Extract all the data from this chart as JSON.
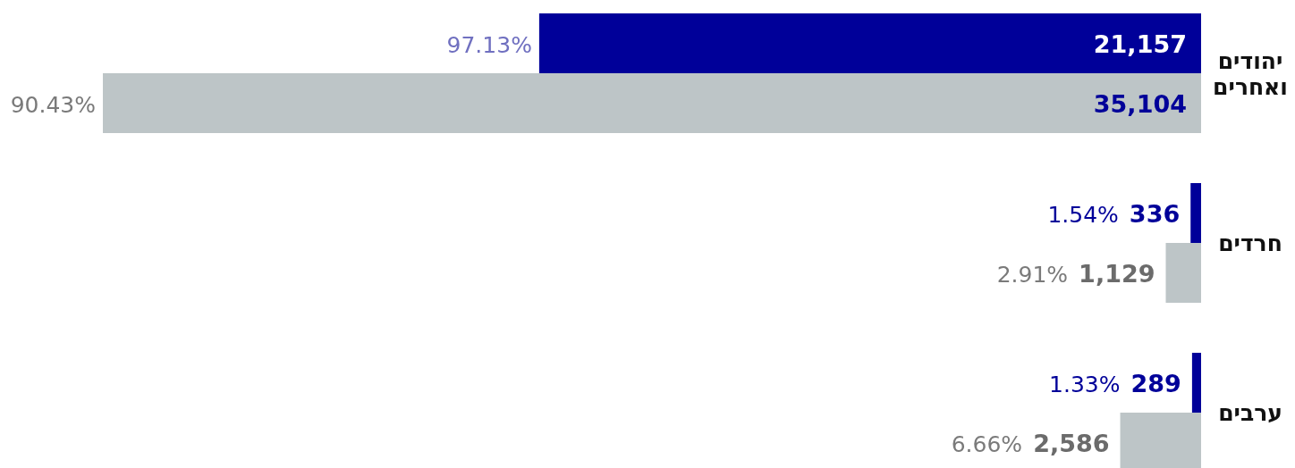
{
  "chart_data": {
    "type": "bar",
    "orientation": "horizontal",
    "categories": [
      "יהודים ואחרים",
      "חרדים",
      "ערבים"
    ],
    "series": [
      {
        "color": "#000099",
        "values": [
          21157,
          336,
          289
        ],
        "value_labels": [
          "21,157",
          "336",
          "289"
        ]
      },
      {
        "color": "#bdc5c7",
        "values": [
          35104,
          1129,
          2586
        ],
        "value_labels": [
          "35,104",
          "1,129",
          "2,586"
        ]
      }
    ],
    "annotations": [
      "97.13%",
      "90.43%",
      "1.54%",
      "2.91%",
      "1.33%",
      "6.66%"
    ]
  }
}
